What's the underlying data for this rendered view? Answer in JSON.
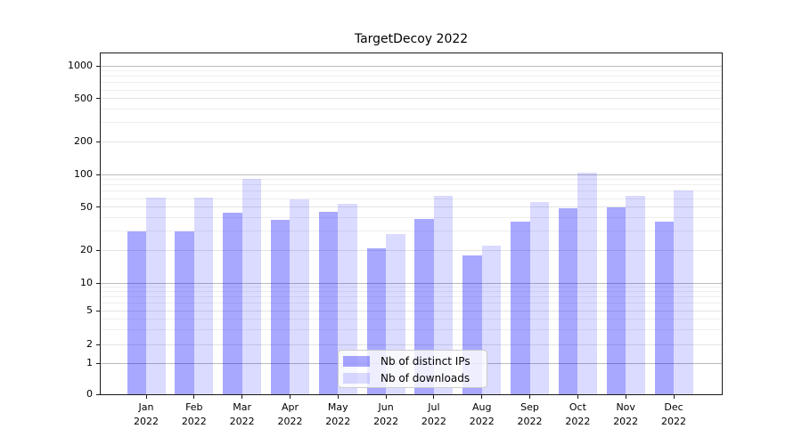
{
  "chart_data": {
    "type": "bar",
    "title": "TargetDecoy 2022",
    "categories": [
      "Jan",
      "Feb",
      "Mar",
      "Apr",
      "May",
      "Jun",
      "Jul",
      "Aug",
      "Sep",
      "Oct",
      "Nov",
      "Dec"
    ],
    "year_label": "2022",
    "series": [
      {
        "name": "Nb of distinct IPs",
        "values": [
          30,
          30,
          44,
          38,
          45,
          21,
          39,
          18,
          37,
          49,
          50,
          37
        ],
        "alpha": 0.34
      },
      {
        "name": "Nb of downloads",
        "values": [
          61,
          61,
          91,
          59,
          54,
          28,
          63,
          22,
          56,
          103,
          63,
          71
        ],
        "alpha": 0.14
      }
    ],
    "base_color": "#0000ff",
    "y_axis": {
      "scale": "symlog",
      "tick_values": [
        0,
        1,
        2,
        5,
        10,
        20,
        50,
        100,
        200,
        500,
        1000
      ],
      "minor_gridline_values": [
        3,
        4,
        6,
        7,
        8,
        9,
        30,
        40,
        60,
        70,
        80,
        90,
        300,
        400,
        600,
        700,
        800,
        900
      ],
      "ylim": [
        0,
        1200
      ]
    },
    "legend": {
      "position": "lower center",
      "entries": [
        "Nb of distinct IPs",
        "Nb of downloads"
      ]
    },
    "grid": true,
    "colors": {
      "bar_dark_effective": "#a8a8f7",
      "bar_light_effective": "#dcdcf8",
      "grid_decade": "#bbbbbb",
      "grid_major": "#e3e3e3",
      "grid_minor": "#eeeeee",
      "axis": "#1a1a1a"
    }
  }
}
